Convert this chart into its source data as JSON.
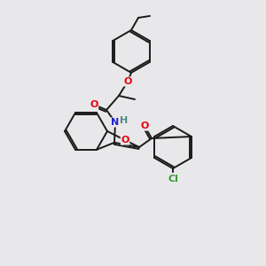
{
  "background_color": "#e8e8ea",
  "bond_color": "#1a1a1a",
  "atom_colors": {
    "O": "#e8000e",
    "N": "#2020cc",
    "Cl": "#3a9a3a",
    "H": "#4a8a8a",
    "C": "#1a1a1a"
  },
  "figsize": [
    3.0,
    3.0
  ],
  "dpi": 100,
  "lw": 1.4
}
